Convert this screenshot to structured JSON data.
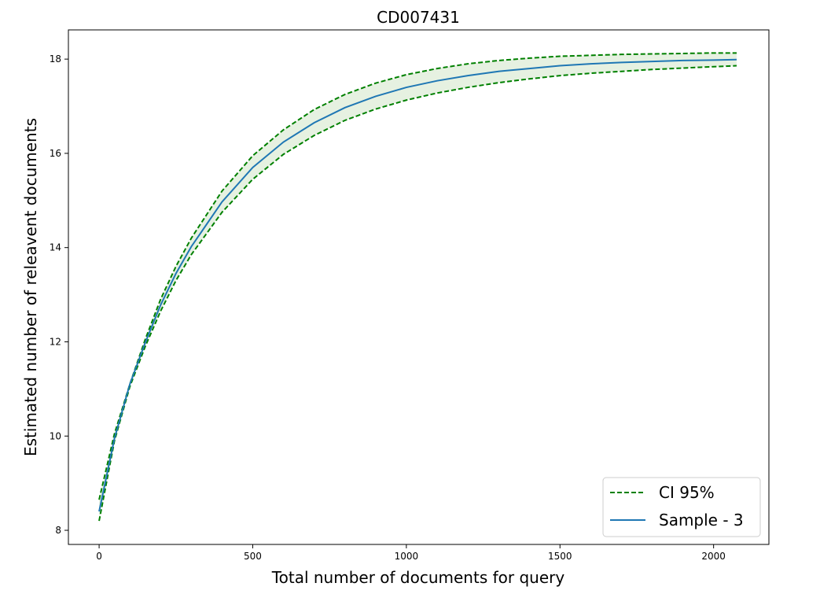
{
  "chart_data": {
    "type": "line",
    "title": "CD007431",
    "xlabel": "Total number of documents for query",
    "ylabel": "Estimated number of releavent documents",
    "xlim": [
      -100,
      2180
    ],
    "ylim": [
      7.7,
      18.62
    ],
    "xticks": [
      0,
      500,
      1000,
      1500,
      2000
    ],
    "yticks": [
      8,
      10,
      12,
      14,
      16,
      18
    ],
    "grid": false,
    "legend_position": "bottom-right",
    "colors": {
      "ci": "#008000",
      "sample": "#1f77b4",
      "band": "#b8d8a8"
    },
    "series": [
      {
        "name": "CI 95%",
        "style": "dashed",
        "lower": {
          "x": [
            0,
            50,
            100,
            150,
            200,
            250,
            300,
            400,
            500,
            600,
            700,
            800,
            900,
            1000,
            1100,
            1200,
            1300,
            1400,
            1500,
            1600,
            1700,
            1800,
            1900,
            2000,
            2075
          ],
          "y": [
            8.2,
            9.9,
            11.05,
            11.9,
            12.65,
            13.3,
            13.85,
            14.75,
            15.45,
            15.98,
            16.38,
            16.7,
            16.94,
            17.13,
            17.28,
            17.4,
            17.5,
            17.58,
            17.65,
            17.7,
            17.74,
            17.78,
            17.81,
            17.84,
            17.86
          ]
        },
        "upper": {
          "x": [
            0,
            50,
            100,
            150,
            200,
            250,
            300,
            400,
            500,
            600,
            700,
            800,
            900,
            1000,
            1100,
            1200,
            1300,
            1400,
            1500,
            1600,
            1700,
            1800,
            1900,
            2000,
            2075
          ],
          "y": [
            8.65,
            10.05,
            11.1,
            12.05,
            12.9,
            13.6,
            14.2,
            15.2,
            15.95,
            16.5,
            16.93,
            17.25,
            17.49,
            17.67,
            17.8,
            17.9,
            17.97,
            18.02,
            18.06,
            18.08,
            18.1,
            18.11,
            18.12,
            18.13,
            18.13
          ]
        }
      },
      {
        "name": "Sample - 3",
        "style": "solid",
        "x": [
          0,
          50,
          100,
          150,
          200,
          250,
          300,
          400,
          500,
          600,
          700,
          800,
          900,
          1000,
          1100,
          1200,
          1300,
          1400,
          1500,
          1600,
          1700,
          1800,
          1900,
          2000,
          2075
        ],
        "y": [
          8.4,
          9.95,
          11.1,
          11.98,
          12.78,
          13.45,
          14.02,
          14.97,
          15.7,
          16.24,
          16.65,
          16.97,
          17.21,
          17.4,
          17.54,
          17.65,
          17.74,
          17.8,
          17.86,
          17.9,
          17.93,
          17.95,
          17.97,
          17.98,
          17.99
        ]
      }
    ]
  }
}
